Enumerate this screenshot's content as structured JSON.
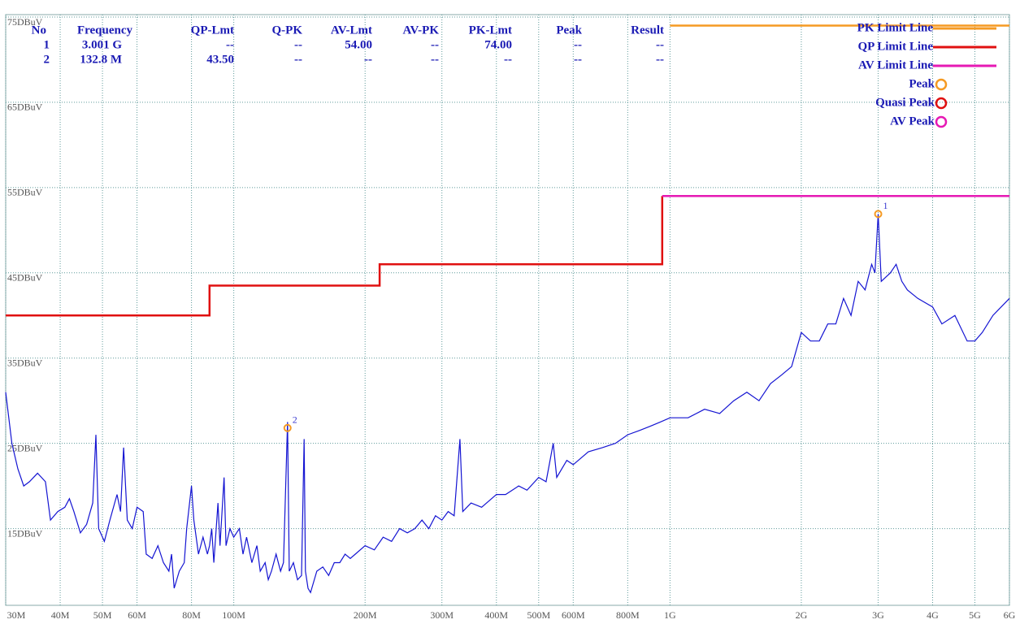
{
  "chart_data": {
    "type": "line",
    "log_x": true,
    "grid": true,
    "xlim": [
      30,
      6000
    ],
    "ylim": [
      6,
      75
    ],
    "xticks": [
      {
        "value": 30,
        "label": "30M"
      },
      {
        "value": 40,
        "label": "40M"
      },
      {
        "value": 50,
        "label": "50M"
      },
      {
        "value": 60,
        "label": "60M"
      },
      {
        "value": 80,
        "label": "80M"
      },
      {
        "value": 100,
        "label": "100M"
      },
      {
        "value": 200,
        "label": "200M"
      },
      {
        "value": 300,
        "label": "300M"
      },
      {
        "value": 400,
        "label": "400M"
      },
      {
        "value": 500,
        "label": "500M"
      },
      {
        "value": 600,
        "label": "600M"
      },
      {
        "value": 800,
        "label": "800M"
      },
      {
        "value": 1000,
        "label": "1G"
      },
      {
        "value": 2000,
        "label": "2G"
      },
      {
        "value": 3000,
        "label": "3G"
      },
      {
        "value": 4000,
        "label": "4G"
      },
      {
        "value": 5000,
        "label": "5G"
      },
      {
        "value": 6000,
        "label": "6G"
      }
    ],
    "yticks": [
      {
        "value": 15,
        "label": "15DBuV"
      },
      {
        "value": 25,
        "label": "25DBuV"
      },
      {
        "value": 35,
        "label": "35DBuV"
      },
      {
        "value": 45,
        "label": "45DBuV"
      },
      {
        "value": 55,
        "label": "55DBuV"
      },
      {
        "value": 65,
        "label": "65DBuV"
      },
      {
        "value": 75,
        "label": "75DBuV"
      }
    ],
    "series": [
      {
        "name": "PK Limit Line",
        "color": "#f59a23",
        "x": [
          1000,
          6000
        ],
        "values": [
          74,
          74
        ]
      },
      {
        "name": "QP Limit Line",
        "color": "#e01010",
        "x": [
          30,
          88,
          88,
          216,
          216,
          960,
          960
        ],
        "values": [
          40,
          40,
          43.5,
          43.5,
          46,
          46,
          54
        ]
      },
      {
        "name": "AV Limit Line",
        "color": "#e619b4",
        "x": [
          960,
          6000
        ],
        "values": [
          54,
          54
        ]
      },
      {
        "color": "#1414d2",
        "x": [
          30,
          31,
          32,
          33,
          34,
          35.5,
          37,
          38,
          39.5,
          41,
          42,
          43,
          44.5,
          46,
          47.5,
          48.3,
          49,
          50.5,
          52,
          54,
          55,
          55.9,
          57,
          58.5,
          60,
          62,
          63,
          65,
          67,
          69,
          71,
          72,
          73,
          75,
          77,
          78,
          80,
          81,
          83,
          85,
          87,
          88,
          89,
          90,
          92,
          93,
          95,
          96,
          98,
          100,
          103,
          105,
          107,
          110,
          113,
          115,
          118,
          120,
          122,
          125,
          128,
          130,
          132.8,
          134,
          137,
          140,
          143,
          145,
          146,
          148,
          150,
          155,
          160,
          165,
          170,
          175,
          180,
          185,
          190,
          200,
          210,
          220,
          230,
          240,
          250,
          260,
          270,
          280,
          290,
          300,
          310,
          320,
          330,
          335,
          350,
          370,
          400,
          420,
          450,
          470,
          500,
          520,
          540,
          550,
          580,
          600,
          650,
          700,
          750,
          800,
          850,
          900,
          950,
          1000,
          1100,
          1200,
          1300,
          1400,
          1500,
          1600,
          1700,
          1800,
          1900,
          2000,
          2100,
          2200,
          2300,
          2400,
          2500,
          2600,
          2700,
          2800,
          2900,
          2950,
          3001,
          3050,
          3200,
          3300,
          3400,
          3500,
          3700,
          4000,
          4200,
          4500,
          4800,
          5000,
          5200,
          5500,
          6000
        ],
        "values": [
          31,
          25,
          22,
          20,
          20.5,
          21.5,
          20.5,
          16,
          17,
          17.5,
          18.5,
          17,
          14.5,
          15.5,
          18,
          26,
          15,
          13.5,
          16,
          19,
          17,
          24.5,
          16,
          15,
          17.5,
          17,
          12,
          11.5,
          13,
          11,
          10,
          12,
          8,
          10,
          11,
          15,
          20,
          16,
          12,
          14,
          12,
          13,
          15,
          11,
          18,
          13,
          21,
          13,
          15,
          14,
          15,
          12,
          14,
          11,
          13,
          10,
          11,
          9,
          10,
          12,
          10,
          11,
          27.5,
          10,
          11,
          9,
          9.5,
          25.5,
          10,
          8,
          7.5,
          10,
          10.5,
          9.5,
          11,
          11,
          12,
          11.5,
          12,
          13,
          12.5,
          14,
          13.5,
          15,
          14.5,
          15,
          16,
          15,
          16.5,
          16,
          17,
          16.5,
          25.5,
          17,
          18,
          17.5,
          19,
          19,
          20,
          19.5,
          21,
          20.5,
          25,
          21,
          23,
          22.5,
          24,
          24.5,
          25,
          26,
          26.5,
          27,
          27.5,
          28,
          28,
          29,
          28.5,
          30,
          31,
          30,
          32,
          33,
          34,
          38,
          37,
          37,
          39,
          39,
          42,
          40,
          44,
          43,
          46,
          45,
          51.9,
          44,
          45,
          46,
          44,
          43,
          42,
          41,
          39,
          40,
          37,
          37,
          38,
          40,
          42
        ]
      }
    ],
    "marker_legend": [
      {
        "name": "Peak",
        "color": "#f59a23"
      },
      {
        "name": "Quasi Peak",
        "color": "#e01010"
      },
      {
        "name": "AV Peak",
        "color": "#e619b4"
      }
    ],
    "markers": [
      {
        "label": "1",
        "x": 3001,
        "value": 51.9
      },
      {
        "label": "2",
        "x": 132.8,
        "value": 26.8
      }
    ],
    "table": {
      "columns": [
        "No",
        "Frequency",
        "QP-Lmt",
        "Q-PK",
        "AV-Lmt",
        "AV-PK",
        "PK-Lmt",
        "Peak",
        "Result"
      ],
      "rows": [
        [
          "1",
          "3.001 G",
          "--",
          "--",
          "54.00",
          "--",
          "74.00",
          "--",
          "--"
        ],
        [
          "2",
          "132.8 M",
          "43.50",
          "--",
          "--",
          "--",
          "--",
          "--",
          "--"
        ]
      ]
    }
  }
}
